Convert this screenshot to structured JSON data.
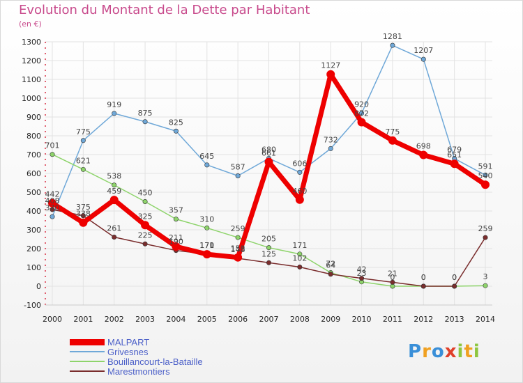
{
  "title": "Evolution du Montant de la Dette par Habitant",
  "unit": "(en €)",
  "logo": [
    "P",
    "r",
    "o",
    "x",
    "i",
    "t",
    "i"
  ],
  "chart_data": {
    "type": "line",
    "title": "Evolution du Montant de la Dette par Habitant",
    "ylabel": "(en €)",
    "ylim": [
      -100,
      1300
    ],
    "yticks": [
      -100,
      0,
      100,
      200,
      300,
      400,
      500,
      600,
      700,
      800,
      900,
      1000,
      1100,
      1200,
      1300
    ],
    "x": [
      "2000",
      "2001",
      "2002",
      "2003",
      "2004",
      "2005",
      "2006",
      "2007",
      "2008",
      "2009",
      "2010",
      "2011",
      "2012",
      "2013",
      "2014"
    ],
    "grid": true,
    "legend_position": "bottom-left",
    "series": [
      {
        "name": "Grivesnes",
        "color": "#6fa8d8",
        "values": [
          370,
          775,
          919,
          875,
          825,
          645,
          587,
          680,
          606,
          732,
          920,
          1281,
          1207,
          679,
          591
        ]
      },
      {
        "name": "Bouillancourt-la-Bataille",
        "color": "#8ed46b",
        "values": [
          701,
          621,
          538,
          450,
          357,
          310,
          259,
          205,
          171,
          72,
          23,
          0,
          0,
          0,
          3
        ]
      },
      {
        "name": "Marestmontiers",
        "color": "#7a2d2d",
        "values": [
          408,
          375,
          261,
          225,
          190,
          171,
          148,
          125,
          102,
          64,
          42,
          21,
          0,
          0,
          259
        ]
      },
      {
        "name": "MALPART",
        "color": "#ee0000",
        "values": [
          442,
          338,
          459,
          325,
          211,
          170,
          153,
          661,
          460,
          1127,
          872,
          775,
          698,
          651,
          540
        ]
      }
    ]
  }
}
